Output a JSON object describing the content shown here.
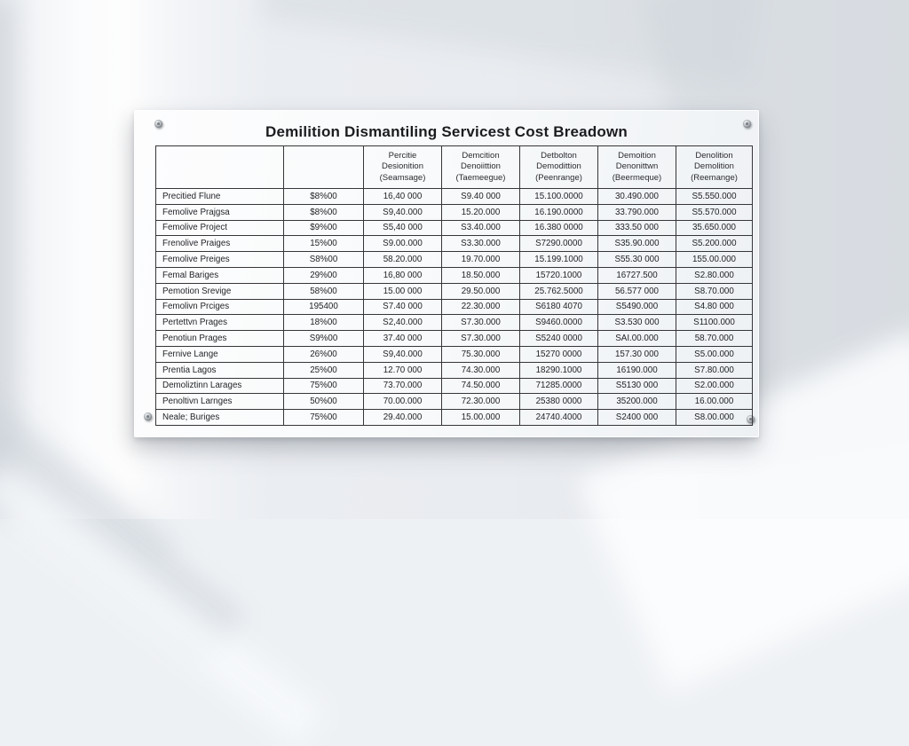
{
  "colors": {
    "wall": "#e9ecf0",
    "panel": "#f8fafb",
    "table_border": "#36363a",
    "text": "#222428"
  },
  "sign": {
    "title": "Demilition Dismantiling Servicest Cost Breadown",
    "table": {
      "headers": [
        "",
        "",
        "Percitie\nDesionition\n(Seamsage)",
        "Demcition\nDenoiittion\n(Taemeegue)",
        "Detbolton\nDemodittion\n(Peenrange)",
        "Demoition\nDenonittwn\n(Beermeque)",
        "Denolition\nDemolition\n(Reemange)"
      ],
      "rows": [
        [
          "Precitied Flune",
          "$8%00",
          "16,40 000",
          "S9.40 000",
          "15.100.0000",
          "30.490.000",
          "S5.550.000"
        ],
        [
          "Femolive Prajgsa",
          "$8%00",
          "S9,40.000",
          "15.20.000",
          "16.190.0000",
          "33.790.000",
          "S5.570.000"
        ],
        [
          "Femolive Project",
          "$9%00",
          "S5,40 000",
          "S3.40.000",
          "16.380 0000",
          "333.50 000",
          "35.650.000"
        ],
        [
          "Frenolive Praiges",
          "15%00",
          "S9.00.000",
          "S3.30.000",
          "S7290.0000",
          "S35.90.000",
          "S5.200.000"
        ],
        [
          "Femolive Preiges",
          "S8%00",
          "58.20.000",
          "19.70.000",
          "15.199.1000",
          "S55.30 000",
          "155.00.000"
        ],
        [
          "Femal Bariges",
          "29%00",
          "16,80 000",
          "18.50.000",
          "15720.1000",
          "16727.500",
          "S2.80.000"
        ],
        [
          "Pemotion Srevige",
          "58%00",
          "15.00 000",
          "29.50.000",
          "25.762.5000",
          "56.577 000",
          "S8.70.000"
        ],
        [
          "Femolivn Prciges",
          "195400",
          "S7.40 000",
          "22.30.000",
          "S6180 4070",
          "S5490.000",
          "S4.80 000"
        ],
        [
          "Pertettvn Prages",
          "18%00",
          "S2,40.000",
          "S7.30.000",
          "S9460.0000",
          "S3.530 000",
          "S1100.000"
        ],
        [
          "Penotiun Prages",
          "S9%00",
          "37.40 000",
          "S7.30.000",
          "S5240 0000",
          "SAI.00.000",
          "58.70.000"
        ],
        [
          "Fernive Lange",
          "26%00",
          "S9,40.000",
          "75.30.000",
          "15270 0000",
          "157.30 000",
          "S5.00.000"
        ],
        [
          "Prentia Lagos",
          "25%00",
          "12.70 000",
          "74.30.000",
          "18290.1000",
          "16190.000",
          "S7.80.000"
        ],
        [
          "Demoliztinn Larages",
          "75%00",
          "73.70.000",
          "74.50.000",
          "71285.0000",
          "S5130 000",
          "S2.00.000"
        ],
        [
          "Penoltivn Larnges",
          "50%00",
          "70.00.000",
          "72.30.000",
          "25380 0000",
          "35200.000",
          "16.00.000"
        ],
        [
          "Neale; Buriges",
          "75%00",
          "29.40.000",
          "15.00.000",
          "24740.4000",
          "S2400 000",
          "S8.00.000"
        ]
      ]
    }
  }
}
